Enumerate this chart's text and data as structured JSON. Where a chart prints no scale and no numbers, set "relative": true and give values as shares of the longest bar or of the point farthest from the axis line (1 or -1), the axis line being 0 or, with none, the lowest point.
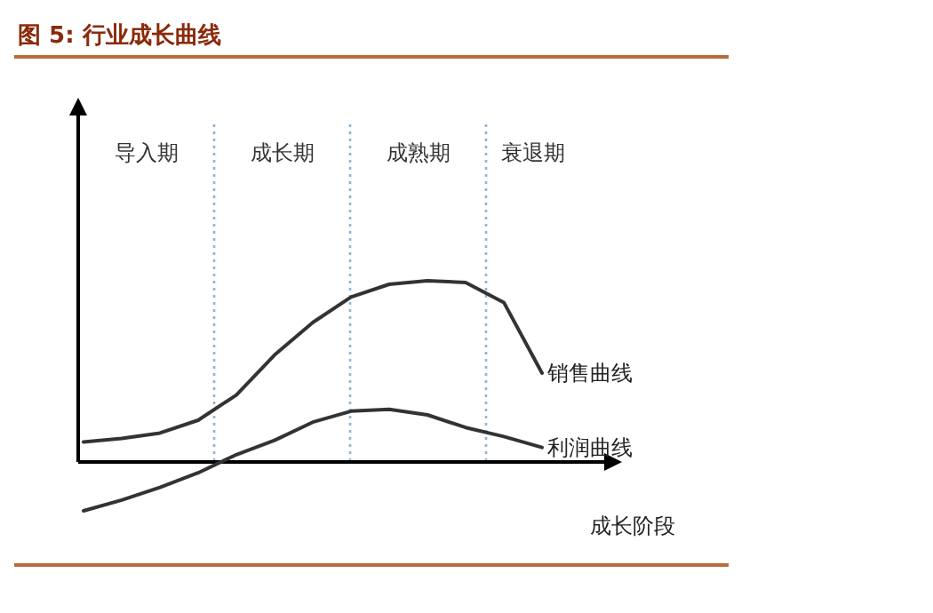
{
  "chart_data": {
    "type": "line",
    "title": "图 5:  行业成长曲线",
    "xlabel": "成长阶段",
    "relative": true,
    "grid": false,
    "legend": false,
    "marker": "none",
    "line_style": "solid",
    "categories": [
      null,
      null,
      null,
      null,
      null,
      null,
      null,
      null,
      null,
      null,
      null,
      null,
      null
    ],
    "series": [
      {
        "name": "销售曲线",
        "color": "#333333",
        "values": [
          0.11,
          0.13,
          0.16,
          0.23,
          0.37,
          0.59,
          0.77,
          0.91,
          0.98,
          1,
          0.99,
          0.88,
          0.49
        ]
      },
      {
        "name": "利润曲线",
        "color": "#333333",
        "values": [
          -0.27,
          -0.21,
          -0.14,
          -0.06,
          0.04,
          0.12,
          0.22,
          0.28,
          0.29,
          0.26,
          0.19,
          0.14,
          0.08
        ]
      }
    ],
    "annotations": [
      "导入期",
      "成长期",
      "成熟期",
      "衰退期"
    ]
  }
}
